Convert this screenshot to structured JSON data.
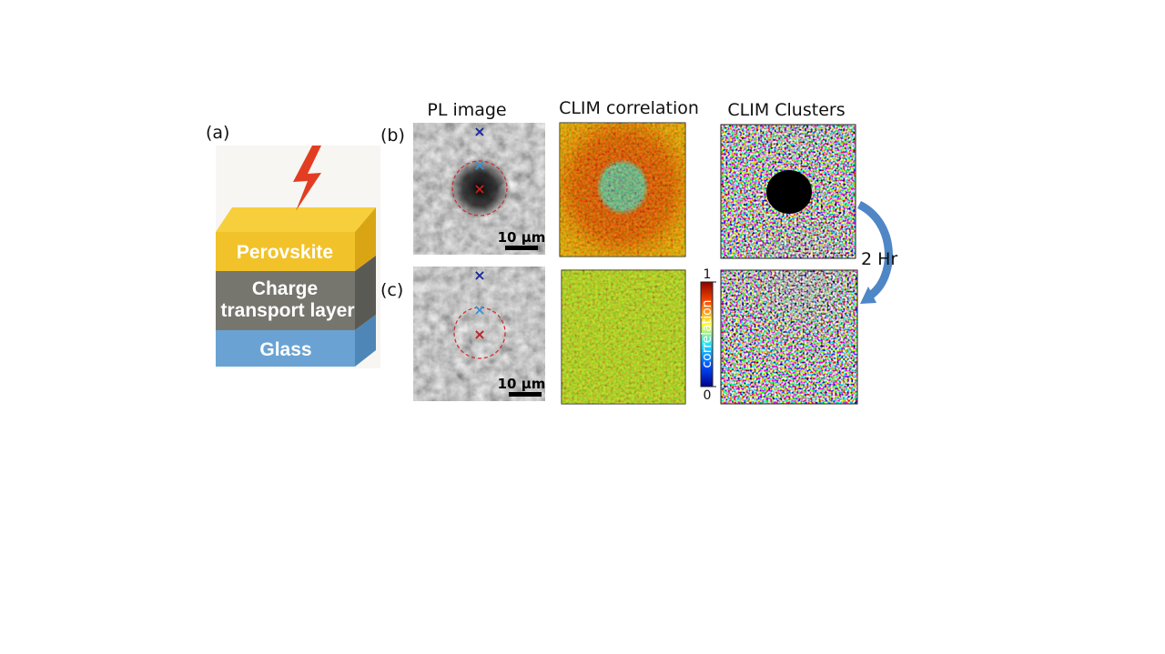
{
  "figure": {
    "panel_labels": [
      "(a)",
      "(b)",
      "(c)"
    ],
    "column_headers": [
      "PL image",
      "CLIM correlation",
      "CLIM Clusters"
    ],
    "schematic": {
      "layers": [
        "Perovskite",
        "Charge",
        "transport layer",
        "Glass"
      ]
    },
    "scale_bar": "10 μm",
    "time_label": "2 Hr",
    "colorbar": {
      "label": "correlation",
      "ticks": [
        0,
        1
      ],
      "lim": [
        0,
        1
      ]
    }
  }
}
